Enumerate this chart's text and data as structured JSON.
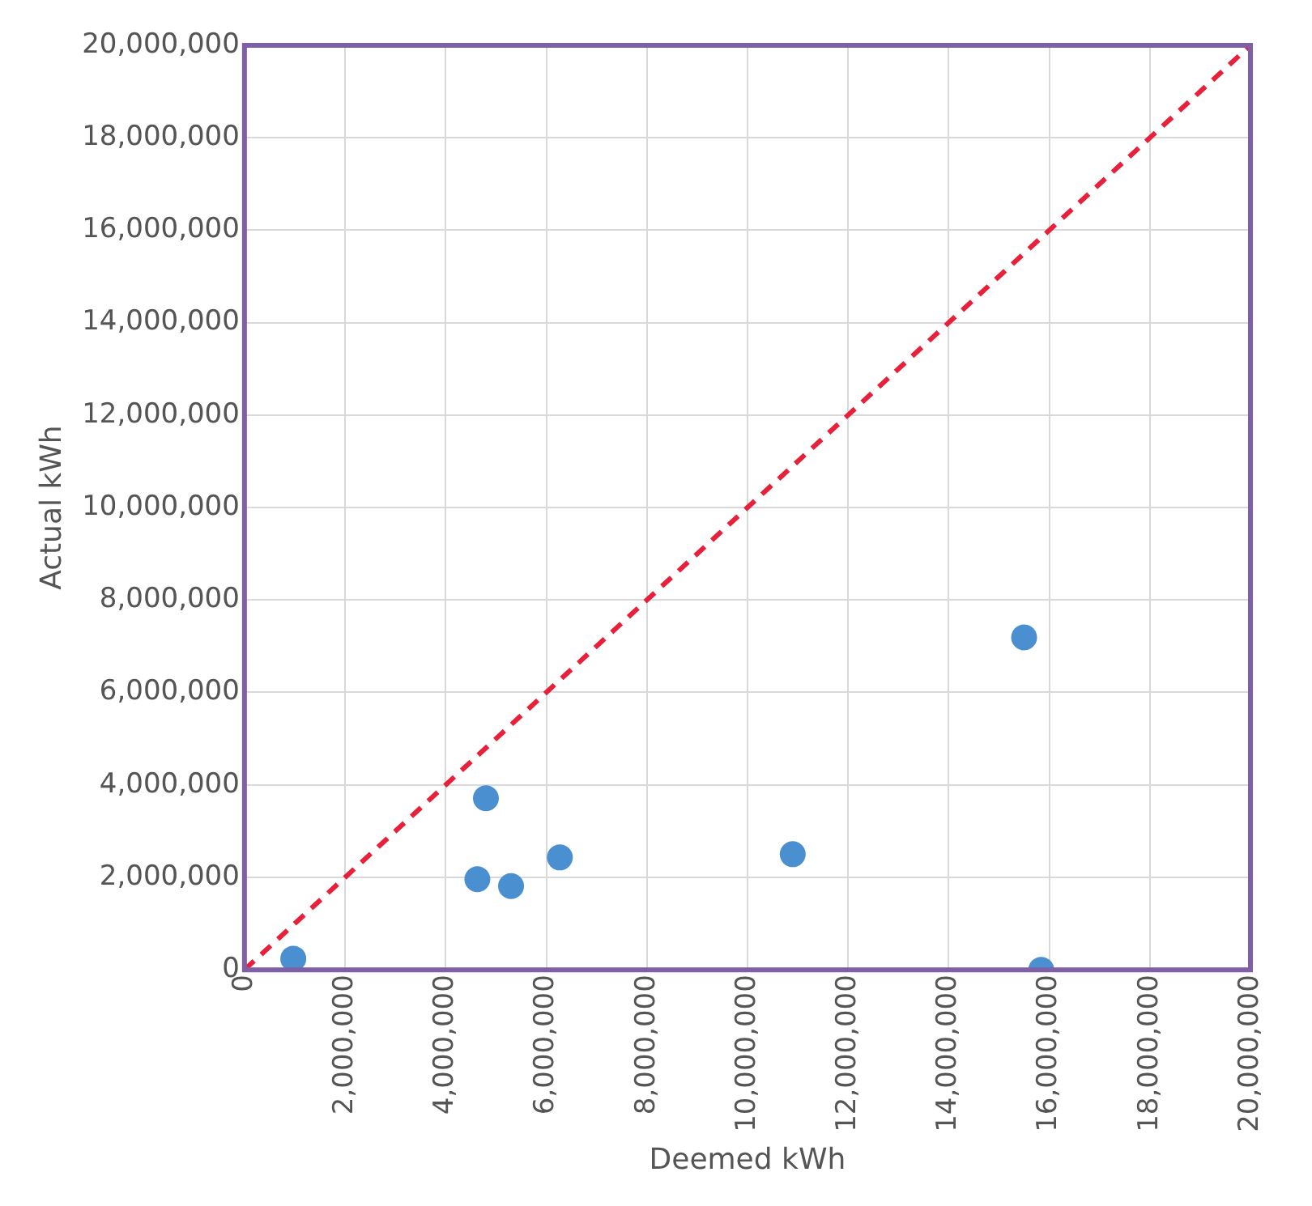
{
  "chart_data": {
    "type": "scatter",
    "xlabel": "Deemed kWh",
    "ylabel": "Actual kWh",
    "xlim": [
      0,
      20000000
    ],
    "ylim": [
      0,
      20000000
    ],
    "xticks": [
      0,
      {
        "value": 2000000,
        "label": "2,000,000"
      },
      {
        "value": 4000000,
        "label": "4,000,000"
      },
      {
        "value": 6000000,
        "label": "6,000,000"
      },
      {
        "value": 8000000,
        "label": "8,000,000"
      },
      {
        "value": 10000000,
        "label": "10,000,000"
      },
      {
        "value": 12000000,
        "label": "12,000,000"
      },
      {
        "value": 14000000,
        "label": "14,000,000"
      },
      {
        "value": 16000000,
        "label": "16,000,000"
      },
      {
        "value": 18000000,
        "label": "18,000,000"
      },
      {
        "value": 20000000,
        "label": "20,000,000"
      }
    ],
    "yticks": [
      0,
      {
        "value": 2000000,
        "label": "2,000,000"
      },
      {
        "value": 4000000,
        "label": "4,000,000"
      },
      {
        "value": 6000000,
        "label": "6,000,000"
      },
      {
        "value": 8000000,
        "label": "8,000,000"
      },
      {
        "value": 10000000,
        "label": "10,000,000"
      },
      {
        "value": 12000000,
        "label": "12,000,000"
      },
      {
        "value": 14000000,
        "label": "14,000,000"
      },
      {
        "value": 16000000,
        "label": "16,000,000"
      },
      {
        "value": 18000000,
        "label": "18,000,000"
      },
      {
        "value": 20000000,
        "label": "20,000,000"
      }
    ],
    "grid": true,
    "marker": "circle",
    "series": [
      {
        "type": "scatter",
        "color": "#4a90d0",
        "x": [
          970000,
          4800000,
          4630000,
          5300000,
          6270000,
          10900000,
          15500000,
          15840000
        ],
        "values": [
          240000,
          3710000,
          1960000,
          1810000,
          2430000,
          2500000,
          7190000,
          0
        ]
      },
      {
        "type": "line",
        "color": "#e8203a",
        "line_style": "dashed",
        "marker": "none",
        "x": [
          0,
          20000000
        ],
        "values": [
          0,
          20000000
        ]
      }
    ]
  }
}
